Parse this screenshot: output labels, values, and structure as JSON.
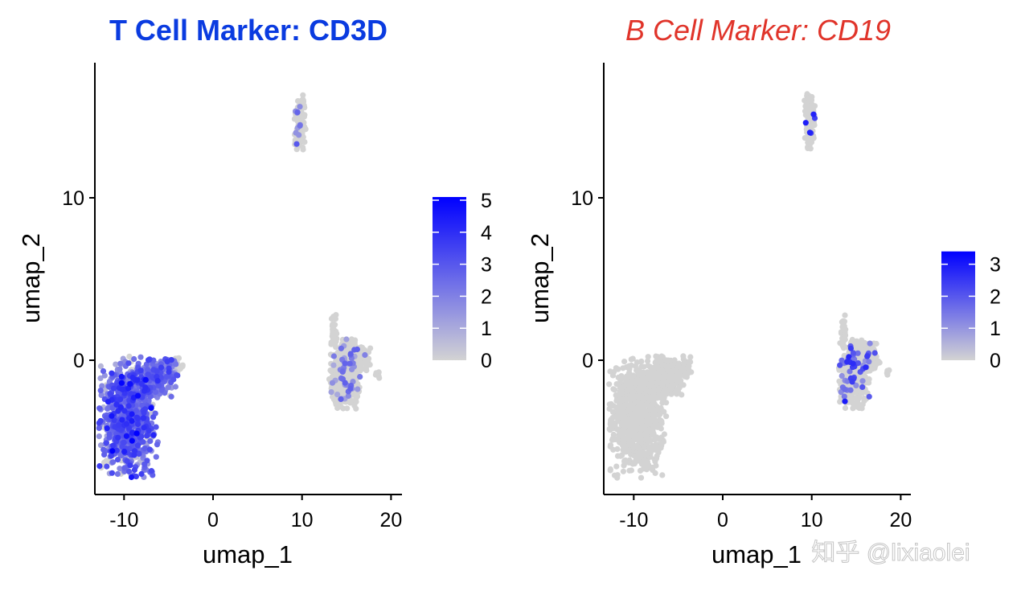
{
  "chart_data": [
    {
      "type": "scatter",
      "title": "T Cell Marker: CD3D",
      "title_color": "#0a3be0",
      "title_style": "bold",
      "xlabel": "umap_1",
      "ylabel": "umap_2",
      "xticks": [
        -10,
        0,
        10,
        20
      ],
      "yticks": [
        0,
        10
      ],
      "xlim": [
        -14.5,
        21.5
      ],
      "ylim": [
        -8.2,
        18.5
      ],
      "grid": false,
      "color_scale": {
        "low": "#D3D3D3",
        "high": "#0000FF",
        "min": 0,
        "max": 5.1,
        "ticks": [
          0,
          1,
          2,
          3,
          4,
          5
        ]
      },
      "legend_placement": "right",
      "clusters": [
        {
          "center": [
            -9.5,
            -3.5
          ],
          "spread": [
            1.5,
            1.7
          ],
          "n": 900,
          "mean_expression": 2.3
        },
        {
          "center": [
            -6.2,
            -1.0
          ],
          "spread": [
            1.1,
            0.6
          ],
          "n": 250,
          "mean_expression": 2.0
        },
        {
          "center": [
            -4.2,
            -0.4
          ],
          "spread": [
            0.4,
            0.3
          ],
          "n": 40,
          "mean_expression": 0.2
        },
        {
          "center": [
            9.8,
            14.7
          ],
          "spread": [
            0.3,
            0.8
          ],
          "n": 120,
          "mean_expression": 0.05
        },
        {
          "center": [
            14.8,
            -0.8
          ],
          "spread": [
            0.8,
            1.0
          ],
          "n": 500,
          "mean_expression": 0.05
        },
        {
          "center": [
            16.4,
            0.2
          ],
          "spread": [
            0.6,
            0.4
          ],
          "n": 120,
          "mean_expression": 0.02
        },
        {
          "center": [
            13.6,
            1.6
          ],
          "spread": [
            0.15,
            0.7
          ],
          "n": 40,
          "mean_expression": 0.0
        },
        {
          "center": [
            18.5,
            -0.8
          ],
          "spread": [
            0.15,
            0.15
          ],
          "n": 5,
          "mean_expression": 0.0
        }
      ]
    },
    {
      "type": "scatter",
      "title": "B Cell Marker: CD19",
      "title_color": "#e0342a",
      "title_style": "italic",
      "xlabel": "umap_1",
      "ylabel": "umap_2",
      "xticks": [
        -10,
        0,
        10,
        20
      ],
      "yticks": [
        0,
        10
      ],
      "xlim": [
        -14.5,
        21.5
      ],
      "ylim": [
        -8.2,
        18.5
      ],
      "grid": false,
      "color_scale": {
        "low": "#D3D3D3",
        "high": "#0000FF",
        "min": 0,
        "max": 3.4,
        "ticks": [
          0,
          1,
          2,
          3
        ]
      },
      "legend_placement": "right",
      "clusters": [
        {
          "center": [
            -9.5,
            -3.5
          ],
          "spread": [
            1.5,
            1.7
          ],
          "n": 900,
          "mean_expression": 0.0
        },
        {
          "center": [
            -6.2,
            -1.0
          ],
          "spread": [
            1.1,
            0.6
          ],
          "n": 250,
          "mean_expression": 0.0
        },
        {
          "center": [
            -4.2,
            -0.4
          ],
          "spread": [
            0.4,
            0.3
          ],
          "n": 40,
          "mean_expression": 0.0
        },
        {
          "center": [
            9.8,
            14.7
          ],
          "spread": [
            0.3,
            0.8
          ],
          "n": 120,
          "mean_expression": 0.5
        },
        {
          "center": [
            14.8,
            -0.8
          ],
          "spread": [
            0.8,
            1.0
          ],
          "n": 500,
          "mean_expression": 0.03
        },
        {
          "center": [
            16.4,
            0.2
          ],
          "spread": [
            0.6,
            0.4
          ],
          "n": 120,
          "mean_expression": 0.1
        },
        {
          "center": [
            13.6,
            1.6
          ],
          "spread": [
            0.15,
            0.7
          ],
          "n": 40,
          "mean_expression": 0.0
        },
        {
          "center": [
            18.5,
            -0.8
          ],
          "spread": [
            0.15,
            0.15
          ],
          "n": 5,
          "mean_expression": 0.0
        }
      ]
    }
  ],
  "watermark": "知乎 @lixiaolei"
}
